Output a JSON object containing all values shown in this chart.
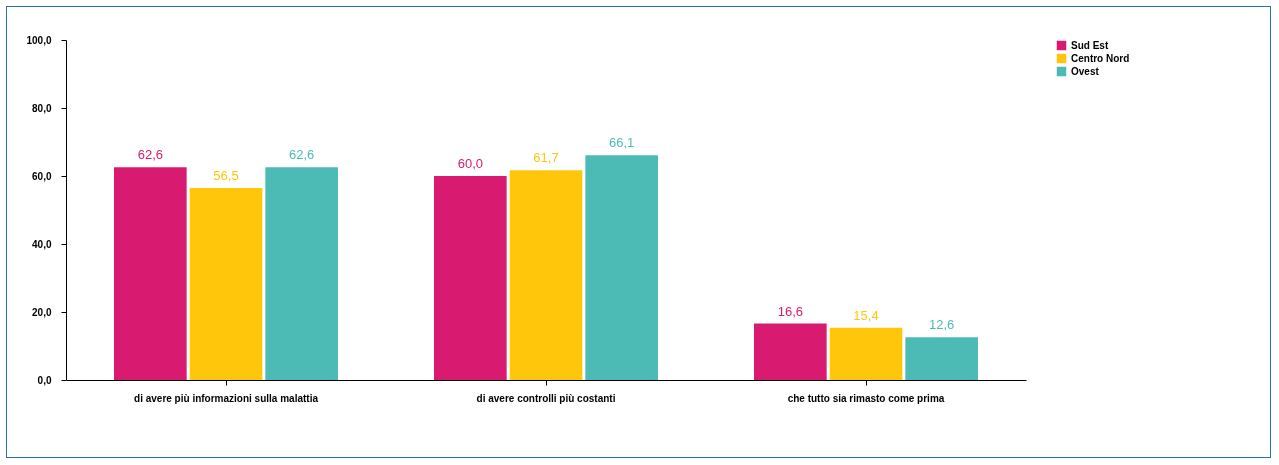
{
  "chart_data": {
    "type": "bar",
    "categories": [
      "di avere più informazioni sulla malattia",
      "di avere controlli più costanti",
      "che tutto sia rimasto come prima"
    ],
    "series": [
      {
        "name": "Sud Est",
        "color": "#d81b70",
        "values": [
          62.6,
          60.0,
          16.6
        ],
        "value_labels": [
          "62,6",
          "60,0",
          "16,6"
        ]
      },
      {
        "name": "Centro Nord",
        "color": "#ffc60b",
        "values": [
          56.5,
          61.7,
          15.4
        ],
        "value_labels": [
          "56,5",
          "61,7",
          "15,4"
        ]
      },
      {
        "name": "Ovest",
        "color": "#4dbbb5",
        "values": [
          62.6,
          66.1,
          12.6
        ],
        "value_labels": [
          "62,6",
          "66,1",
          "12,6"
        ]
      }
    ],
    "ylim": [
      0,
      100
    ],
    "yticks": [
      {
        "value": 0,
        "label": "0,0"
      },
      {
        "value": 20,
        "label": "20,0"
      },
      {
        "value": 40,
        "label": "40,0"
      },
      {
        "value": 60,
        "label": "60,0"
      },
      {
        "value": 80,
        "label": "80,0"
      },
      {
        "value": 100,
        "label": "100,0"
      }
    ],
    "grid": false,
    "legend": "right"
  }
}
